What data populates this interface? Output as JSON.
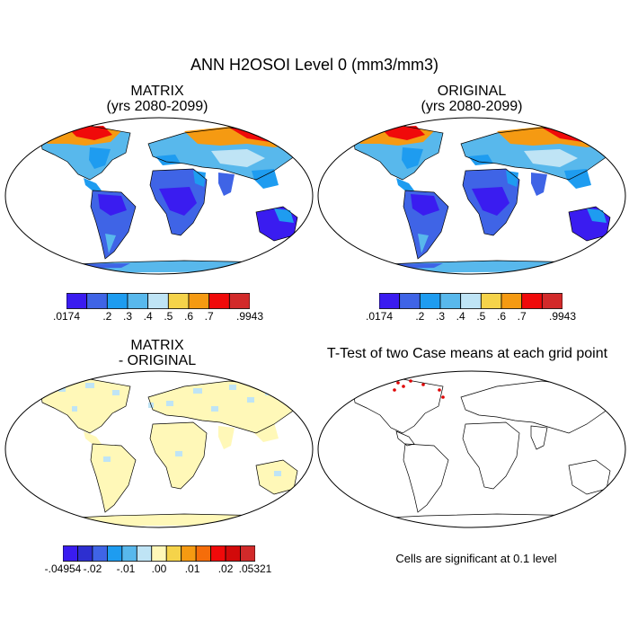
{
  "figure": {
    "title": "ANN H2OSOI Level 0 (mm3/mm3)"
  },
  "panels": {
    "matrix": {
      "title_line1": "MATRIX",
      "title_line2": "(yrs 2080-2099)",
      "colorbar": {
        "colors": [
          "#3a1cf0",
          "#3f64e6",
          "#1e9cf0",
          "#58b8ec",
          "#bfe4f5",
          "#f5d34a",
          "#f59a12",
          "#f00a0a",
          "#d22a2a"
        ],
        "labels": [
          ".0174",
          ".2",
          ".3",
          ".4",
          ".5",
          ".6",
          ".7",
          ".9943"
        ]
      }
    },
    "original": {
      "title_line1": "ORIGINAL",
      "title_line2": "(yrs 2080-2099)",
      "colorbar": {
        "colors": [
          "#3a1cf0",
          "#3f64e6",
          "#1e9cf0",
          "#58b8ec",
          "#bfe4f5",
          "#f5d34a",
          "#f59a12",
          "#f00a0a",
          "#d22a2a"
        ],
        "labels": [
          ".0174",
          ".2",
          ".3",
          ".4",
          ".5",
          ".6",
          ".7",
          ".9943"
        ]
      }
    },
    "difference": {
      "title_line1": "MATRIX",
      "title_line2": "- ORIGINAL",
      "colorbar": {
        "colors": [
          "#3a1cf0",
          "#2d2fd0",
          "#3f64e6",
          "#1e9cf0",
          "#58b8ec",
          "#bfe4f5",
          "#fff8b8",
          "#f5d34a",
          "#f59a12",
          "#f56d0a",
          "#f00a0a",
          "#d20a0a",
          "#d22a2a"
        ],
        "labels": [
          "-.04954",
          "-.02",
          "-.01",
          ".00",
          ".01",
          ".02",
          ".05321"
        ]
      }
    },
    "ttest": {
      "title": "T-Test of two Case means at each grid point",
      "note": "Cells are significant at 0.1 level"
    }
  }
}
